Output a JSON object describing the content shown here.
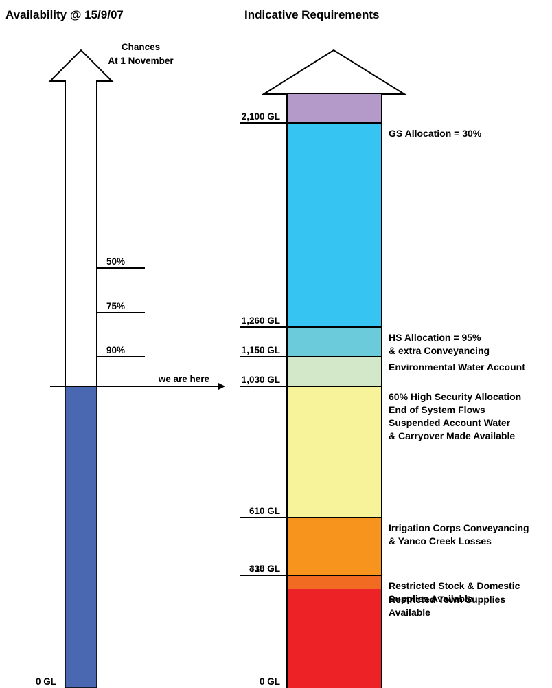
{
  "headers": {
    "left": "Availability @ 15/9/07",
    "right": "Indicative Requirements"
  },
  "left_arrow": {
    "chances_title": [
      "Chances",
      "At 1 November"
    ],
    "probability_marks": [
      {
        "label": "50%",
        "volume_gl": 1630
      },
      {
        "label": "75%",
        "volume_gl": 1440
      },
      {
        "label": "90%",
        "volume_gl": 1150
      }
    ],
    "current_volume_gl": 1030,
    "current_fill_color": "#4a67b1",
    "we_are_here_label": "we are here",
    "zero_label": "0 GL"
  },
  "requirements": {
    "bands": [
      {
        "from_gl": 0,
        "to_gl": 290,
        "color": "#ed2226",
        "description": [
          "Restricted Town Supplies",
          "Available"
        ]
      },
      {
        "from_gl": 290,
        "to_gl": 330,
        "color": "#f26b22",
        "description": [
          "Restricted Stock & Domestic",
          "Supplies Available"
        ]
      },
      {
        "from_gl": 330,
        "to_gl": 415,
        "color": "#f7941d",
        "description": []
      },
      {
        "from_gl": 415,
        "to_gl": 610,
        "color": "#f7941d",
        "description": [
          "Irrigation Corps Conveyancing",
          "& Yanco Creek Losses"
        ]
      },
      {
        "from_gl": 610,
        "to_gl": 1030,
        "color": "#f7f39b",
        "description": [
          "60% High Security Allocation",
          "End of System Flows",
          "Suspended Account Water",
          "& Carryover Made Available"
        ]
      },
      {
        "from_gl": 1030,
        "to_gl": 1150,
        "color": "#d3e8c8",
        "description": [
          "Environmental Water Account"
        ]
      },
      {
        "from_gl": 1150,
        "to_gl": 1260,
        "color": "#6ccbda",
        "description": [
          "HS Allocation = 95%",
          "& extra Conveyancing"
        ]
      },
      {
        "from_gl": 1260,
        "to_gl": 2100,
        "color": "#36c5f2",
        "description": [
          "GS Allocation = 30%"
        ]
      },
      {
        "from_gl": 2100,
        "to_gl": 2320,
        "color": "#b49ac8",
        "description": []
      }
    ],
    "level_labels": [
      {
        "value_gl": 2100,
        "label": "2,100 GL"
      },
      {
        "value_gl": 1260,
        "label": "1,260 GL"
      },
      {
        "value_gl": 1150,
        "label": "1,150 GL"
      },
      {
        "value_gl": 1030,
        "label": "1,030 GL"
      },
      {
        "value_gl": 610,
        "label": "610 GL"
      },
      {
        "value_gl": 415,
        "label": "415 GL"
      },
      {
        "value_gl": 330,
        "label": "330 GL"
      },
      {
        "value_gl": 0,
        "label": "0 GL"
      }
    ]
  }
}
